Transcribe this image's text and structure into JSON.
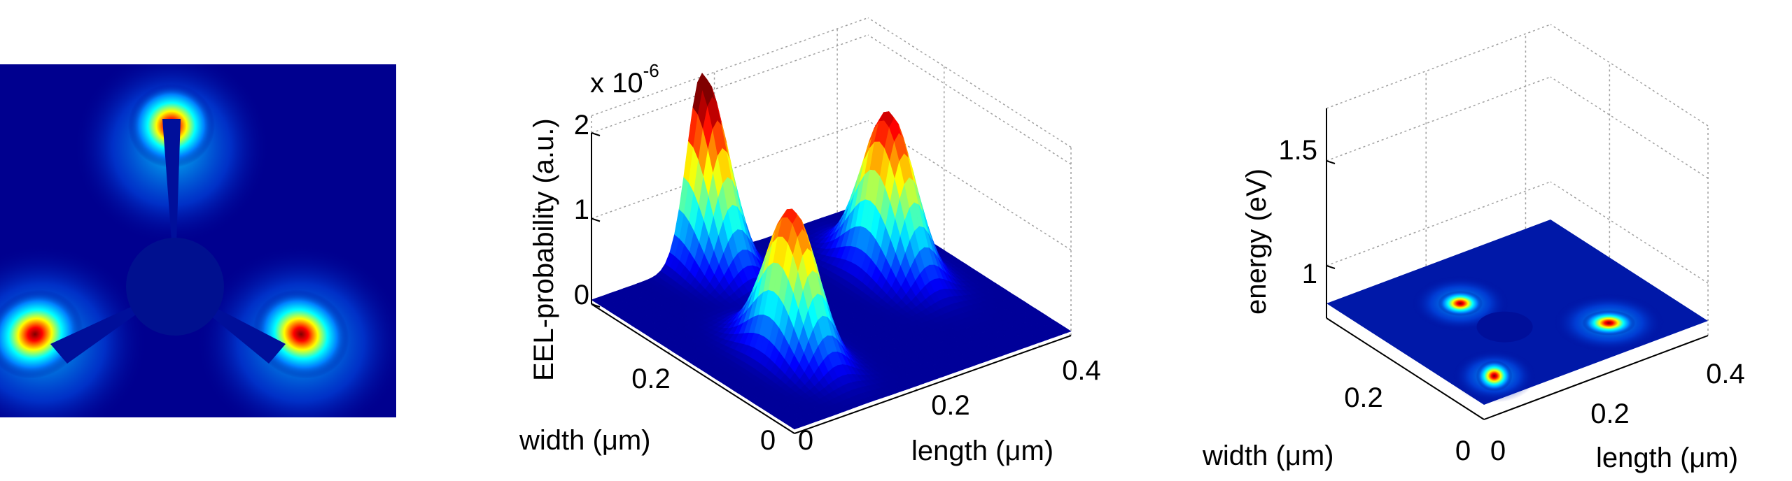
{
  "chart_data": [
    {
      "type": "heatmap",
      "panel": "left",
      "colormap": "jet",
      "description_of_pattern": "three-armed star with hot lobes at each arm tip",
      "arms": [
        {
          "name": "top",
          "peak": 1.0
        },
        {
          "name": "lower-left",
          "peak": 1.0
        },
        {
          "name": "lower-right",
          "peak": 1.0
        }
      ]
    },
    {
      "type": "surface",
      "panel": "middle",
      "colormap": "jet",
      "xlabel": "length (μm)",
      "ylabel": "width (μm)",
      "zlabel": "EEL-probability (a.u.)",
      "z_multiplier": "x 10",
      "z_multiplier_exp": "-6",
      "x_ticks": [
        "0",
        "0.2",
        "0.4"
      ],
      "y_ticks": [
        "0",
        "0.2"
      ],
      "z_ticks": [
        "0",
        "1",
        "2"
      ],
      "zlim": [
        0,
        2
      ],
      "peaks": [
        {
          "label": "rear peak",
          "x": 0.18,
          "y": 0.32,
          "z": 2.2
        },
        {
          "label": "front peak",
          "x": 0.12,
          "y": 0.12,
          "z": 1.7
        },
        {
          "label": "right peak",
          "x": 0.36,
          "y": 0.2,
          "z": 1.85
        }
      ]
    },
    {
      "type": "surface",
      "panel": "right",
      "colormap": "jet",
      "xlabel": "length (μm)",
      "ylabel": "width (μm)",
      "zlabel": "energy (eV)",
      "x_ticks": [
        "0",
        "0.2",
        "0.4"
      ],
      "y_ticks": [
        "0",
        "0.2"
      ],
      "z_ticks": [
        "1",
        "1.5"
      ],
      "plane_energy_eV": 0.82
    }
  ],
  "colors": {
    "jet_low": "#00008f",
    "jet_mid": "#00ffff",
    "jet_high": "#ff0000",
    "axis": "#000000",
    "grid": "#a0a0a0"
  }
}
